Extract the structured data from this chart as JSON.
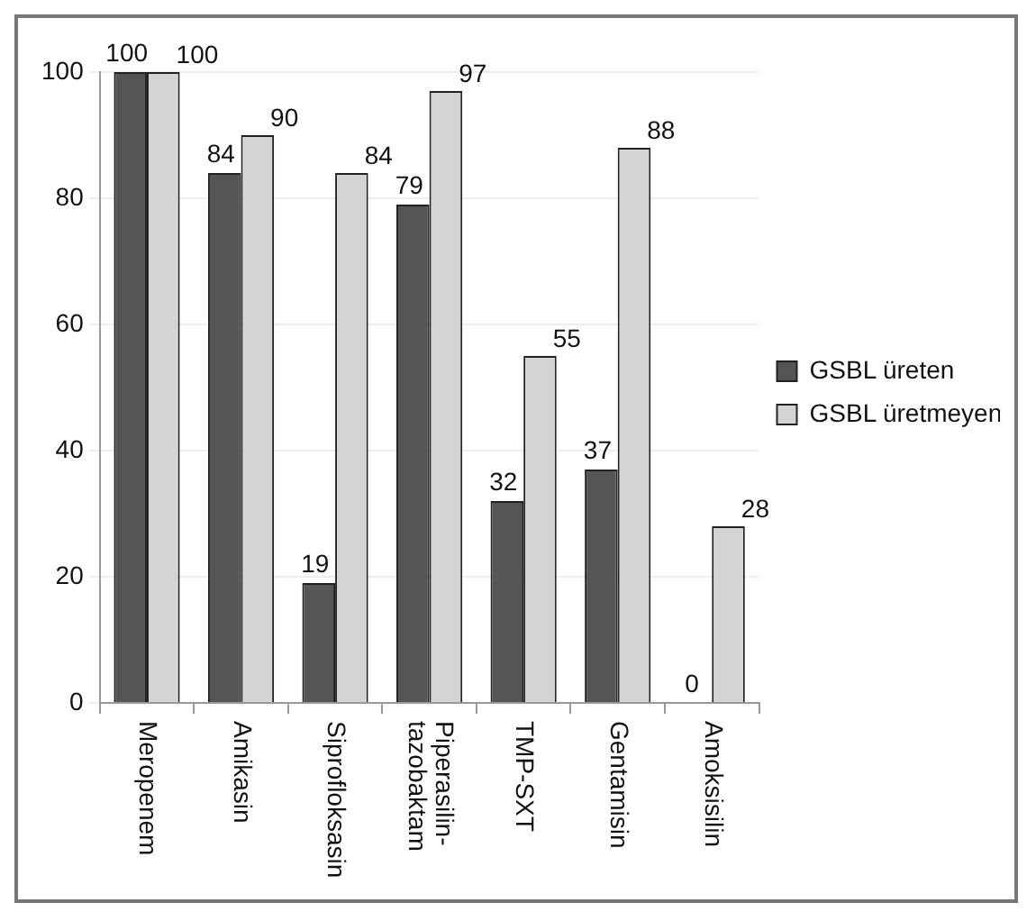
{
  "chart_data": {
    "type": "bar",
    "categories": [
      "Meropenem",
      "Amikasin",
      "Siprofloksasin",
      "Piperasilin-tazobaktam",
      "TMP-SXT",
      "Gentamisin",
      "Amoksisilin"
    ],
    "series": [
      {
        "name": "GSBL üreten",
        "color": "#555555",
        "values": [
          100,
          84,
          19,
          79,
          32,
          37,
          0
        ]
      },
      {
        "name": "GSBL üretmeyen",
        "color": "#d4d4d4",
        "values": [
          100,
          90,
          84,
          97,
          55,
          88,
          28
        ]
      }
    ],
    "ylim": [
      0,
      100
    ],
    "yticks": [
      0,
      20,
      40,
      60,
      80,
      100
    ],
    "grid": "y",
    "legend": "right",
    "data_labels": true
  }
}
